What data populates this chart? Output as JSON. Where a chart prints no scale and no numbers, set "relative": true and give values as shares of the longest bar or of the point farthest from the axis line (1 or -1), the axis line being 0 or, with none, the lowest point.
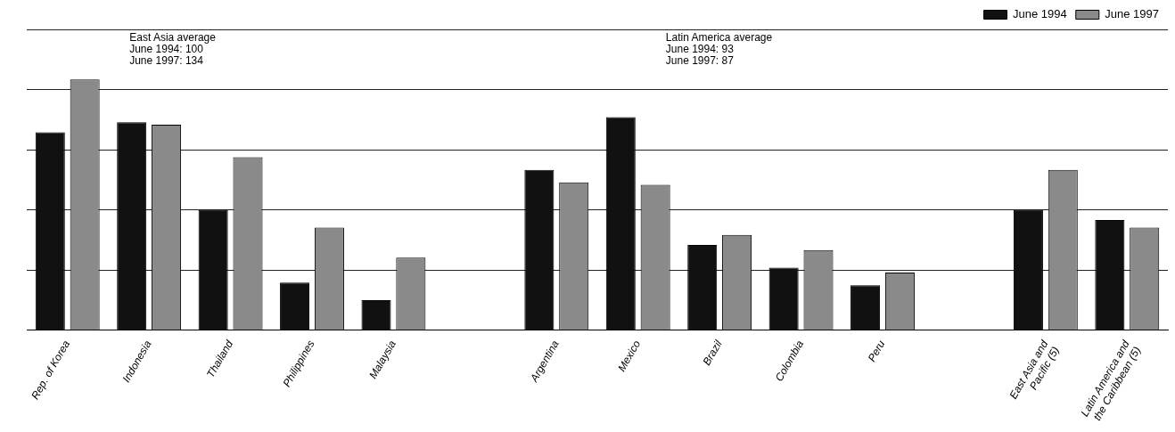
{
  "chart_data": {
    "type": "bar",
    "relative": true,
    "grid": "y",
    "legend": "top right",
    "categories": [
      "Rep. of Korea",
      "Indonesia",
      "Thailand",
      "Philippines",
      "Malaysia",
      null,
      "Argentina",
      "Mexico",
      "Brazil",
      "Colombia",
      "Peru",
      null,
      "East Asia and Pacific (5)",
      "Latin America and the Caribbean (5)"
    ],
    "series": [
      {
        "name": "June 1994",
        "color": "#111111",
        "values": [
          0.79,
          0.83,
          0.48,
          0.19,
          0.12,
          null,
          0.64,
          0.85,
          0.34,
          0.25,
          0.18,
          null,
          0.48,
          0.44
        ]
      },
      {
        "name": "June 1997",
        "color": "#8a8a8a",
        "values": [
          1,
          0.82,
          0.69,
          0.41,
          0.29,
          null,
          0.59,
          0.58,
          0.38,
          0.32,
          0.23,
          null,
          0.64,
          0.41
        ]
      }
    ],
    "annotations": [
      "East Asia average\nJune 1994: 100\nJune 1997: 134",
      "Latin America average\nJune 1994: 93\nJune 1997: 87"
    ]
  }
}
